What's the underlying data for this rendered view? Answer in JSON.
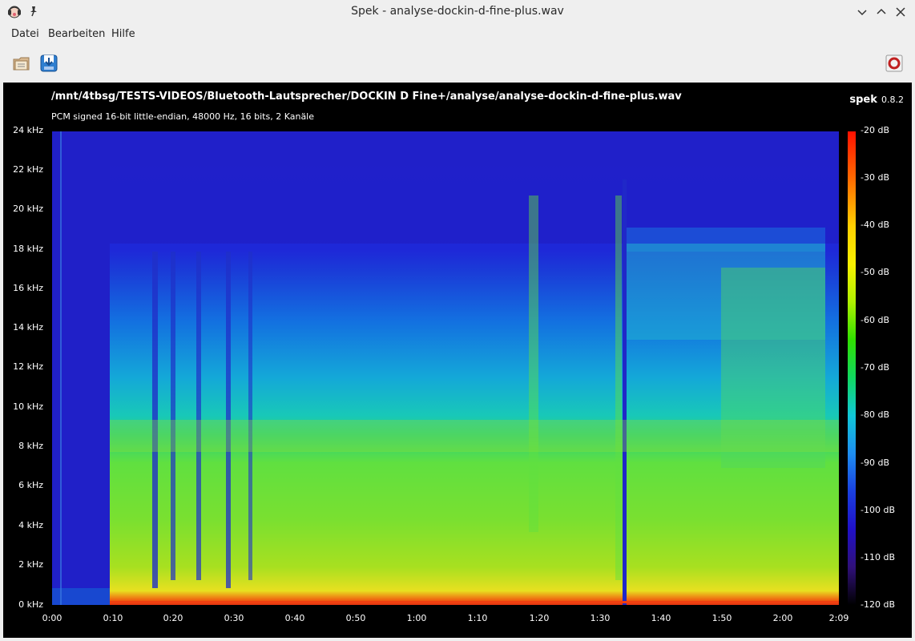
{
  "window": {
    "title": "Spek - analyse-dockin-d-fine-plus.wav"
  },
  "menu": [
    "Datei",
    "Bearbeiten",
    "Hilfe"
  ],
  "toolbar": {
    "open_icon": "folder-open-icon",
    "save_icon": "save-download-icon",
    "prefs_icon": "lifebuoy-icon"
  },
  "spectrogram": {
    "file_path": "/mnt/4tbsg/TESTS-VIDEOS/Bluetooth-Lautsprecher/DOCKIN D Fine+/analyse/analyse-dockin-d-fine-plus.wav",
    "format_info": "PCM signed 16-bit little-endian, 48000 Hz, 16 bits, 2 Kanäle",
    "brand": "spek",
    "version": "0.8.2",
    "freq_labels": [
      "24 kHz",
      "22 kHz",
      "20 kHz",
      "18 kHz",
      "16 kHz",
      "14 kHz",
      "12 kHz",
      "10 kHz",
      "8 kHz",
      "6 kHz",
      "4 kHz",
      "2 kHz",
      "0 kHz"
    ],
    "time_labels": [
      "0:00",
      "0:10",
      "0:20",
      "0:30",
      "0:40",
      "0:50",
      "1:00",
      "1:10",
      "1:20",
      "1:30",
      "1:40",
      "1:50",
      "2:00",
      "2:09"
    ],
    "db_labels": [
      "-20 dB",
      "-30 dB",
      "-40 dB",
      "-50 dB",
      "-60 dB",
      "-70 dB",
      "-80 dB",
      "-90 dB",
      "-100 dB",
      "-110 dB",
      "-120 dB"
    ]
  }
}
